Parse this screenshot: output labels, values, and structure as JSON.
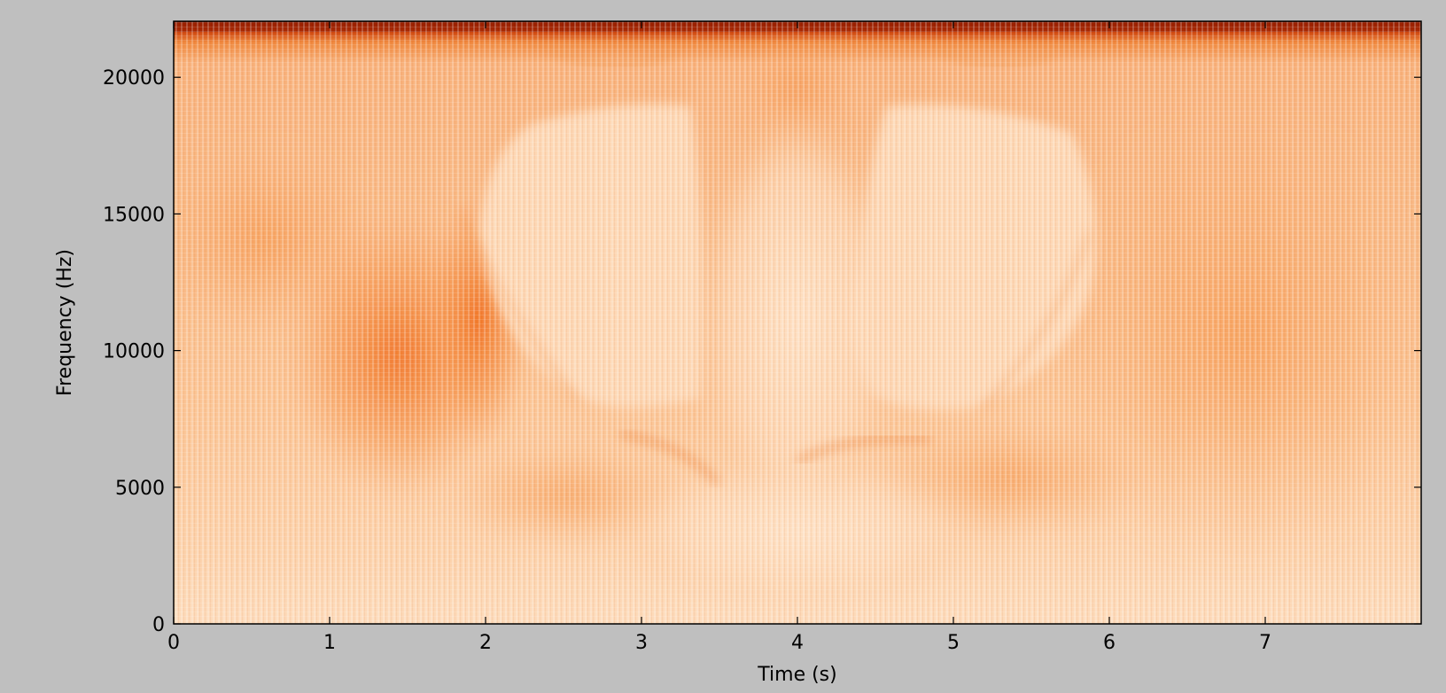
{
  "chart_data": {
    "type": "heatmap",
    "chart_kind": "spectrogram",
    "title": "",
    "xlabel": "Time (s)",
    "ylabel": "Frequency (Hz)",
    "xlim": [
      0,
      8
    ],
    "ylim": [
      0,
      22050
    ],
    "x_ticks": [
      0,
      1,
      2,
      3,
      4,
      5,
      6,
      7
    ],
    "x_tick_labels": [
      "0",
      "1",
      "2",
      "3",
      "4",
      "5",
      "6",
      "7"
    ],
    "y_ticks": [
      0,
      5000,
      10000,
      15000,
      20000
    ],
    "y_tick_labels": [
      "0",
      "5000",
      "10000",
      "15000",
      "20000"
    ],
    "grid": false,
    "colormap": "orange (light = low power, dark red = high power)",
    "colors": {
      "figure_background": "#bfbfbf",
      "low": "#fde6cc",
      "mid": "#f7a056",
      "high": "#c43a08",
      "peak": "#8c1a02"
    }
  }
}
